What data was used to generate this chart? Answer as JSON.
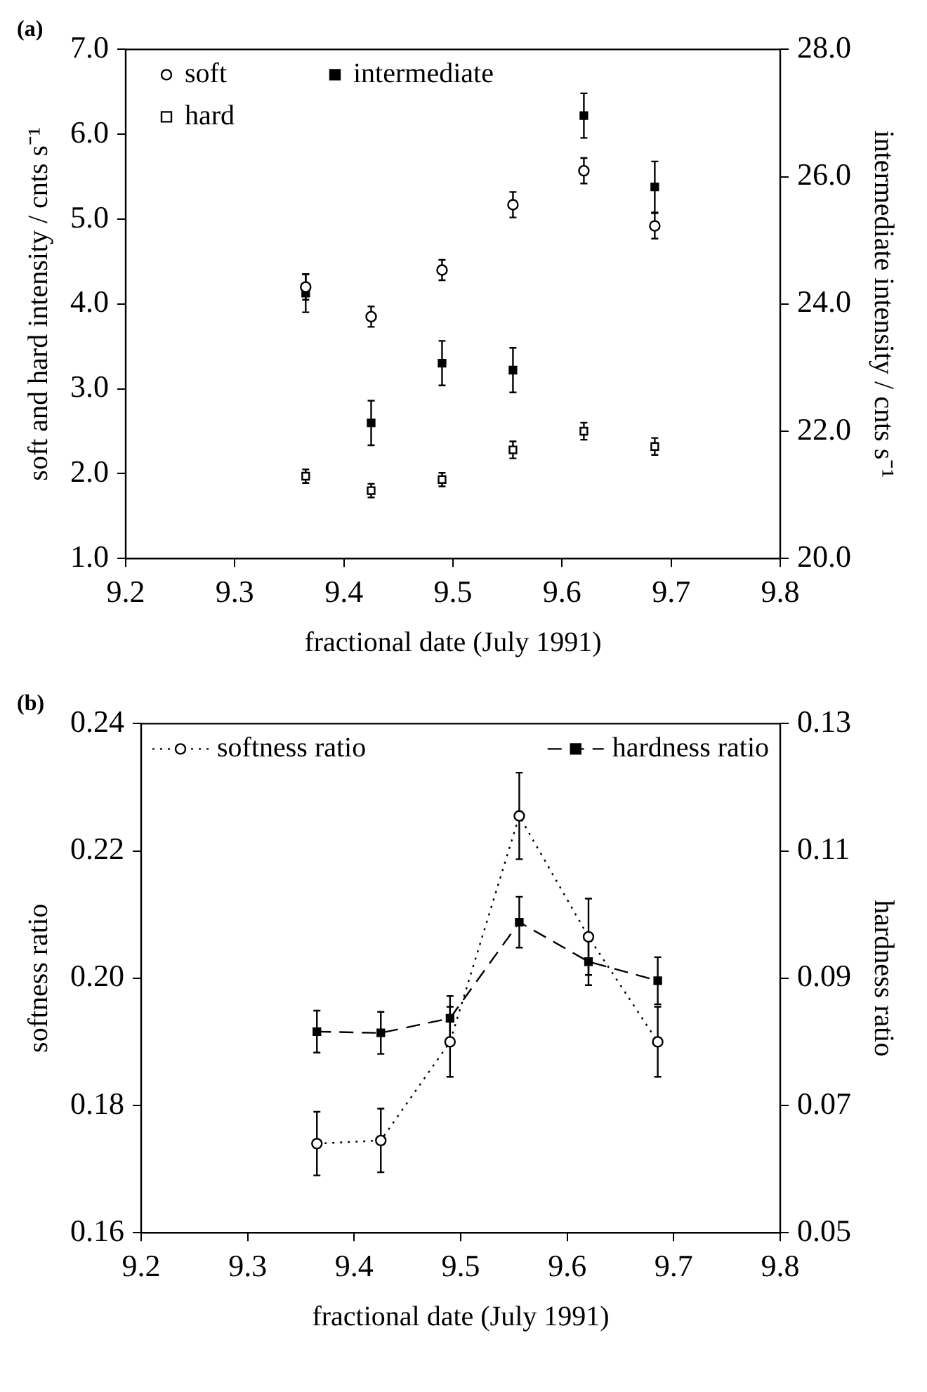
{
  "chart_data": [
    {
      "type": "scatter",
      "title": "(a)",
      "xlabel": "fractional date (July 1991)",
      "ylabel": "soft and hard intensity / cnts s⁻¹",
      "y2label": "intermediate intensity / cnts s⁻¹",
      "x": [
        9.365,
        9.425,
        9.49,
        9.555,
        9.62,
        9.685
      ],
      "xlim": [
        9.2,
        9.8
      ],
      "xticks": [
        9.2,
        9.3,
        9.4,
        9.5,
        9.6,
        9.7,
        9.8
      ],
      "ylim": [
        1,
        7
      ],
      "yticks": [
        {
          "value": 1,
          "label": "1.0"
        },
        {
          "value": 2,
          "label": "2.0"
        },
        {
          "value": 3,
          "label": "3.0"
        },
        {
          "value": 4,
          "label": "4.0"
        },
        {
          "value": 5,
          "label": "5.0"
        },
        {
          "value": 6,
          "label": "6.0"
        },
        {
          "value": 7,
          "label": "7.0"
        }
      ],
      "y2lim": [
        20,
        28
      ],
      "y2ticks": [
        {
          "value": 20,
          "label": "20.0"
        },
        {
          "value": 22,
          "label": "22.0"
        },
        {
          "value": 24,
          "label": "24.0"
        },
        {
          "value": 26,
          "label": "26.0"
        },
        {
          "value": 28,
          "label": "28.0"
        }
      ],
      "legend": "top left",
      "series": [
        {
          "name": "soft",
          "color": "#000000",
          "marker": "circle",
          "values": [
            4.2,
            3.85,
            4.4,
            5.17,
            5.57,
            4.92
          ],
          "errors": [
            0.15,
            0.12,
            0.12,
            0.15,
            0.15,
            0.15
          ]
        },
        {
          "name": "hard",
          "color": "#000000",
          "marker": "square",
          "values": [
            1.97,
            1.8,
            1.93,
            2.28,
            2.5,
            2.32
          ],
          "errors": [
            0.08,
            0.08,
            0.08,
            0.1,
            0.1,
            0.1
          ]
        },
        {
          "name": "intermediate",
          "color": "#000000",
          "marker": "square",
          "axis": "y2",
          "values": [
            24.17,
            22.13,
            23.07,
            22.96,
            26.96,
            25.84
          ],
          "errors": [
            0.3,
            0.35,
            0.35,
            0.35,
            0.35,
            0.4
          ]
        }
      ]
    },
    {
      "type": "line",
      "title": "(b)",
      "xlabel": "fractional date (July 1991)",
      "ylabel": "softness ratio",
      "y2label": "hardness ratio",
      "x": [
        9.365,
        9.425,
        9.49,
        9.555,
        9.62,
        9.685
      ],
      "xlim": [
        9.2,
        9.8
      ],
      "xticks": [
        9.2,
        9.3,
        9.4,
        9.5,
        9.6,
        9.7,
        9.8
      ],
      "ylim": [
        0.16,
        0.24
      ],
      "yticks": [
        0.16,
        {
          "value": 0.18,
          "label": "0.18"
        },
        {
          "value": 0.2,
          "label": "0.20"
        },
        0.22,
        0.24
      ],
      "y2lim": [
        0.05,
        0.13
      ],
      "y2ticks": [
        0.05,
        0.07,
        0.09,
        0.11,
        0.13
      ],
      "legend": "top",
      "series": [
        {
          "name": "softness ratio",
          "color": "#000000",
          "marker": "circle",
          "line_style": "dotted",
          "values": [
            0.174,
            0.1745,
            0.19,
            0.2255,
            0.2065,
            0.19
          ],
          "errors": [
            0.005,
            0.005,
            0.0055,
            0.0068,
            0.006,
            0.0055
          ]
        },
        {
          "name": "hardness ratio",
          "color": "#000000",
          "marker": "square",
          "line_style": "dashed",
          "axis": "y2",
          "values": [
            0.0816,
            0.0814,
            0.0837,
            0.0988,
            0.0926,
            0.0896
          ],
          "errors": [
            0.0033,
            0.0033,
            0.0035,
            0.004,
            0.0037,
            0.0037
          ]
        }
      ]
    }
  ]
}
